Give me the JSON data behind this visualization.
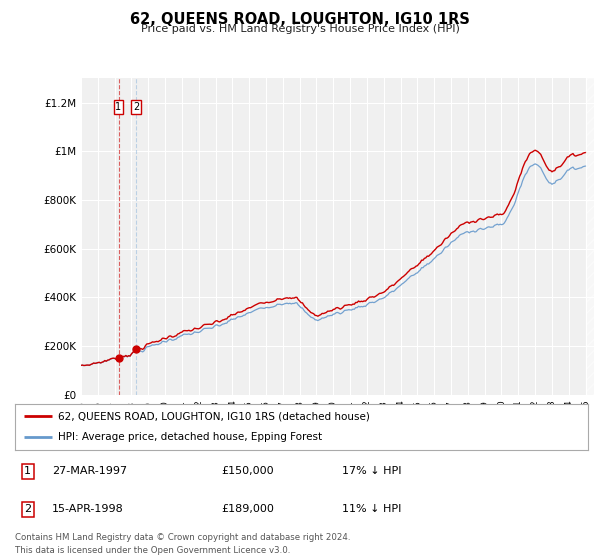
{
  "title": "62, QUEENS ROAD, LOUGHTON, IG10 1RS",
  "subtitle": "Price paid vs. HM Land Registry's House Price Index (HPI)",
  "footer": "Contains HM Land Registry data © Crown copyright and database right 2024.\nThis data is licensed under the Open Government Licence v3.0.",
  "legend_line1": "62, QUEENS ROAD, LOUGHTON, IG10 1RS (detached house)",
  "legend_line2": "HPI: Average price, detached house, Epping Forest",
  "transaction1_date": "27-MAR-1997",
  "transaction1_price": "£150,000",
  "transaction1_hpi": "17% ↓ HPI",
  "transaction2_date": "15-APR-1998",
  "transaction2_price": "£189,000",
  "transaction2_hpi": "11% ↓ HPI",
  "color_red": "#cc0000",
  "color_blue": "#6699cc",
  "background_color": "#ffffff",
  "plot_bg_color": "#f0f0f0",
  "ylim_min": 0,
  "ylim_max": 1300000,
  "yticks": [
    0,
    200000,
    400000,
    600000,
    800000,
    1000000,
    1200000
  ],
  "ytick_labels": [
    "£0",
    "£200K",
    "£400K",
    "£600K",
    "£800K",
    "£1M",
    "£1.2M"
  ],
  "transaction1_year": 1997.23,
  "transaction2_year": 1998.29,
  "transaction1_value": 150000,
  "transaction2_value": 189000
}
